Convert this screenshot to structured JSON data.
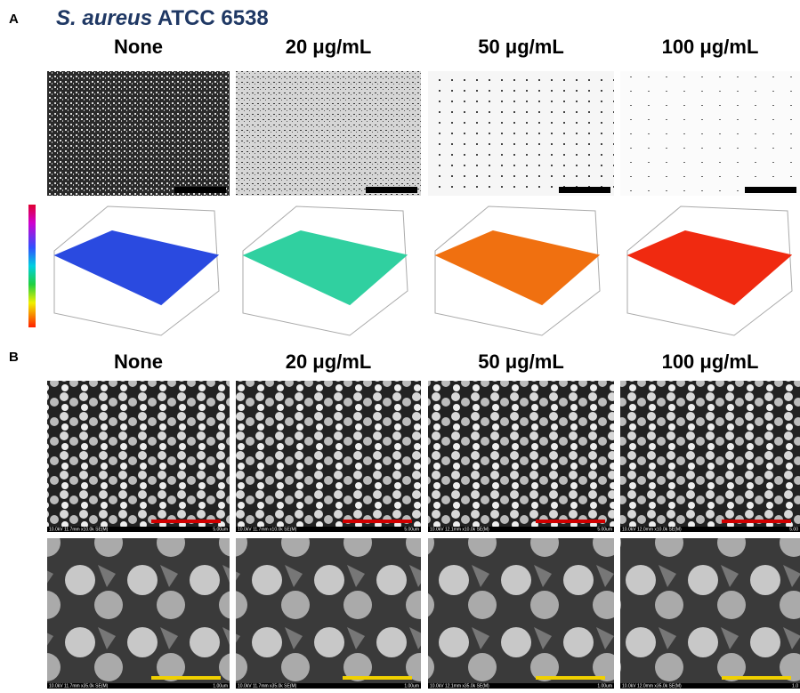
{
  "panel_a": {
    "label": "A",
    "title_italic": "S. aureus",
    "title_rest": "ATCC 6538",
    "columns": [
      "None",
      "20 μg/mL",
      "50 μg/mL",
      "100 μg/mL"
    ]
  },
  "panel_b": {
    "label": "B",
    "columns": [
      "None",
      "20 μg/mL",
      "50 μg/mL",
      "100 μg/mL"
    ],
    "sem_rows": [
      [
        {
          "info": "10.0kV 11.7mm x10.0k SE(M)",
          "scale": "5.00um"
        },
        {
          "info": "10.0kV 11.7mm x10.0k SE(M)",
          "scale": "5.00um"
        },
        {
          "info": "10.0kV 12.1mm x10.0k SE(M)",
          "scale": "5.00um"
        },
        {
          "info": "10.0kV 12.0mm x10.0k SE(M)",
          "scale": "5.00"
        }
      ],
      [
        {
          "info": "10.0kV 11.7mm x35.0k SE(M)",
          "scale": "1.00um"
        },
        {
          "info": "10.0kV 11.7mm x35.0k SE(M)",
          "scale": "1.00um"
        },
        {
          "info": "10.0kV 12.1mm x35.0k SE(M)",
          "scale": "1.00um"
        },
        {
          "info": "10.0kV 12.0mm x35.0k SE(M)",
          "scale": "1.0"
        }
      ]
    ]
  }
}
